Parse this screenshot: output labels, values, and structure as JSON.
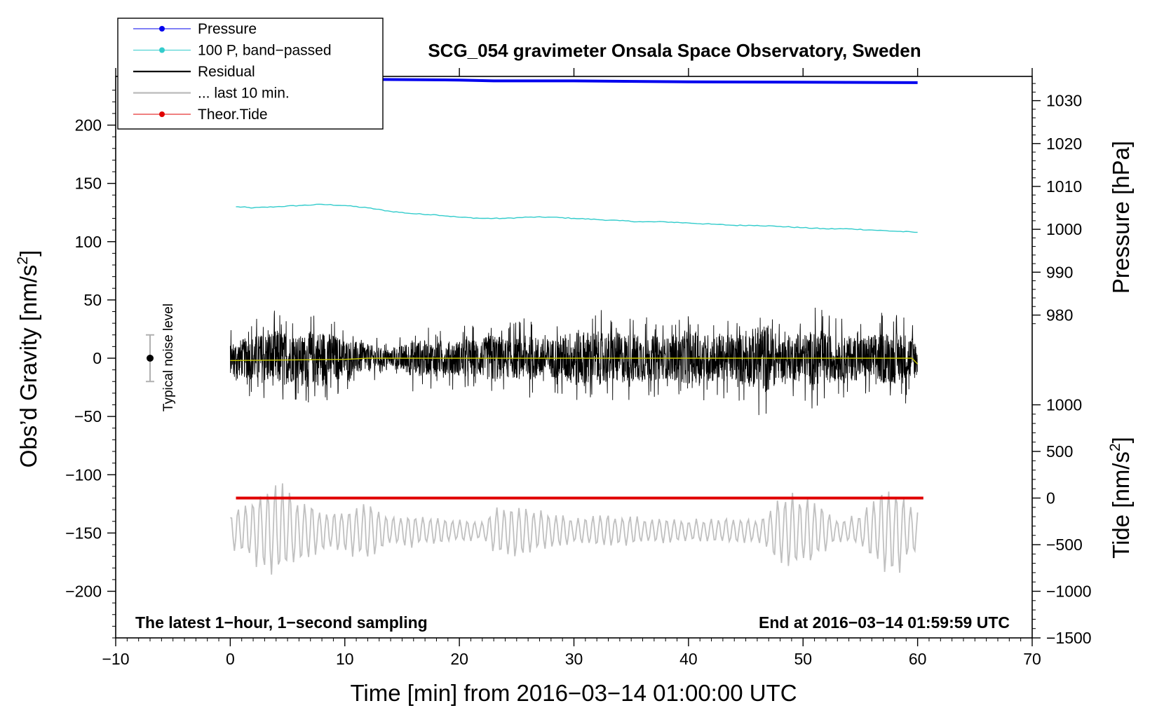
{
  "chart_data": {
    "type": "line",
    "title": "SCG_054 gravimeter Onsala Space Observatory, Sweden",
    "xlabel": "Time [min] from 2016−03−14 01:00:00 UTC",
    "ylabel_left_text": "Obs’d Gravity [nm/s",
    "ylabel_left_sup": "2",
    "ylabel_left_close": "]",
    "ylabel_pressure": "Pressure [hPa]",
    "ylabel_tide_text": "Tide [nm/s",
    "ylabel_tide_sup": "2",
    "ylabel_tide_close": "]",
    "xlim": [
      -10,
      70
    ],
    "ylim_left": [
      -240,
      240
    ],
    "x_ticks": [
      "−10",
      "0",
      "10",
      "20",
      "30",
      "40",
      "50",
      "60",
      "70"
    ],
    "x_tick_values": [
      -10,
      0,
      10,
      20,
      30,
      40,
      50,
      60,
      70
    ],
    "y_ticks_left": [
      "200",
      "150",
      "100",
      "50",
      "0",
      "−50",
      "−100",
      "−150",
      "−200"
    ],
    "y_tick_values_left": [
      200,
      150,
      100,
      50,
      0,
      -50,
      -100,
      -150,
      -200
    ],
    "pressure_ticks": [
      "1030",
      "1020",
      "1010",
      "1000",
      "990",
      "980"
    ],
    "pressure_tick_values": [
      1030,
      1020,
      1010,
      1000,
      990,
      980
    ],
    "pressure_axis_map": {
      "value_a": 1030,
      "grav_a": 221,
      "value_b": 980,
      "grav_b": 37
    },
    "tide_ticks": [
      "1000",
      "500",
      "0",
      "−500",
      "−1000",
      "−1500"
    ],
    "tide_tick_values": [
      1000,
      500,
      0,
      -500,
      -1000,
      -1500
    ],
    "tide_axis_map": {
      "value_a": 1000,
      "grav_a": -40,
      "value_b": -1500,
      "grav_b": -240
    },
    "footer_left": "The latest 1−hour, 1−second sampling",
    "footer_right": "End at 2016−03−14 01:59:59 UTC",
    "noise_label": "Typical noise level",
    "noise_bar": {
      "x": -7,
      "center": 0,
      "low": -20,
      "high": 20
    },
    "series": [
      {
        "name": "Pressure",
        "color": "#0000ee",
        "axis": "pressure",
        "style": "line-dot",
        "points": [
          [
            0,
            1035.0
          ],
          [
            10,
            1035.0
          ],
          [
            20,
            1034.8
          ],
          [
            23,
            1034.6
          ],
          [
            30,
            1034.6
          ],
          [
            40,
            1034.4
          ],
          [
            50,
            1034.3
          ],
          [
            60,
            1034.2
          ]
        ]
      },
      {
        "name": "100 P, band−passed",
        "color": "#33cccc",
        "axis": "gravity",
        "style": "line-dot",
        "points": [
          [
            0.5,
            130
          ],
          [
            2,
            129
          ],
          [
            4,
            130
          ],
          [
            6,
            131
          ],
          [
            8,
            132
          ],
          [
            10,
            131
          ],
          [
            12,
            129
          ],
          [
            14,
            126
          ],
          [
            16,
            124
          ],
          [
            18,
            123
          ],
          [
            20,
            121
          ],
          [
            22,
            120
          ],
          [
            24,
            120
          ],
          [
            26,
            121
          ],
          [
            28,
            121
          ],
          [
            30,
            120
          ],
          [
            32,
            119
          ],
          [
            34,
            118
          ],
          [
            36,
            117
          ],
          [
            38,
            117
          ],
          [
            40,
            116
          ],
          [
            42,
            115
          ],
          [
            44,
            114
          ],
          [
            46,
            114
          ],
          [
            48,
            113
          ],
          [
            50,
            112
          ],
          [
            52,
            111
          ],
          [
            54,
            111
          ],
          [
            56,
            110
          ],
          [
            58,
            109
          ],
          [
            60,
            108
          ]
        ]
      },
      {
        "name": "Residual",
        "color": "#000000",
        "axis": "gravity",
        "style": "line",
        "x_start": 0,
        "x_end": 60,
        "amplitude_envelope": [
          [
            0,
            25
          ],
          [
            2,
            35
          ],
          [
            4,
            45
          ],
          [
            6,
            35
          ],
          [
            8,
            45
          ],
          [
            10,
            30
          ],
          [
            12,
            22
          ],
          [
            14,
            12
          ],
          [
            16,
            30
          ],
          [
            18,
            25
          ],
          [
            20,
            28
          ],
          [
            22,
            30
          ],
          [
            23,
            40
          ],
          [
            24,
            30
          ],
          [
            26,
            35
          ],
          [
            28,
            30
          ],
          [
            30,
            45
          ],
          [
            32,
            42
          ],
          [
            34,
            40
          ],
          [
            36,
            38
          ],
          [
            38,
            32
          ],
          [
            40,
            40
          ],
          [
            42,
            38
          ],
          [
            44,
            35
          ],
          [
            46,
            50
          ],
          [
            47,
            55
          ],
          [
            48,
            30
          ],
          [
            50,
            38
          ],
          [
            51,
            45
          ],
          [
            53,
            35
          ],
          [
            55,
            35
          ],
          [
            57,
            40
          ],
          [
            59,
            40
          ],
          [
            60,
            30
          ]
        ]
      },
      {
        "name": "... last 10 min.",
        "color": "#c0c0c0",
        "axis": "gravity",
        "style": "line",
        "baseline": -148,
        "x_start": 0,
        "x_end": 60,
        "amplitude_envelope": [
          [
            0,
            15
          ],
          [
            2,
            30
          ],
          [
            4,
            45
          ],
          [
            6,
            30
          ],
          [
            8,
            18
          ],
          [
            10,
            20
          ],
          [
            12,
            28
          ],
          [
            14,
            12
          ],
          [
            16,
            15
          ],
          [
            18,
            12
          ],
          [
            20,
            10
          ],
          [
            22,
            8
          ],
          [
            23,
            20
          ],
          [
            25,
            25
          ],
          [
            27,
            18
          ],
          [
            30,
            12
          ],
          [
            33,
            15
          ],
          [
            36,
            12
          ],
          [
            40,
            10
          ],
          [
            43,
            12
          ],
          [
            46,
            10
          ],
          [
            48,
            30
          ],
          [
            49,
            38
          ],
          [
            51,
            28
          ],
          [
            53,
            10
          ],
          [
            55,
            15
          ],
          [
            57,
            40
          ],
          [
            58,
            42
          ],
          [
            60,
            18
          ]
        ]
      },
      {
        "name": "Theor.Tide",
        "color": "#e00000",
        "axis": "tide",
        "style": "line-dot",
        "points": [
          [
            0.5,
            0
          ],
          [
            20,
            0
          ],
          [
            40,
            0
          ],
          [
            60.5,
            0
          ]
        ]
      },
      {
        "name": "Residual (smoothed)",
        "color": "#c8c800",
        "axis": "gravity",
        "style": "line",
        "points": [
          [
            0,
            -2
          ],
          [
            10,
            -1
          ],
          [
            12,
            0
          ],
          [
            20,
            0
          ],
          [
            30,
            0
          ],
          [
            40,
            0
          ],
          [
            50,
            0
          ],
          [
            59.5,
            0
          ],
          [
            60,
            -5
          ]
        ]
      }
    ],
    "legend": [
      {
        "label": "Pressure",
        "color": "#0000ee",
        "marker": true
      },
      {
        "label": "100 P, band−passed",
        "color": "#33cccc",
        "marker": true
      },
      {
        "label": "Residual",
        "color": "#000000",
        "marker": false
      },
      {
        "label": "... last 10 min.",
        "color": "#c0c0c0",
        "marker": false
      },
      {
        "label": "Theor.Tide",
        "color": "#e00000",
        "marker": true
      }
    ],
    "legend_placement": "top-left, overlapping frame",
    "grid": false
  }
}
